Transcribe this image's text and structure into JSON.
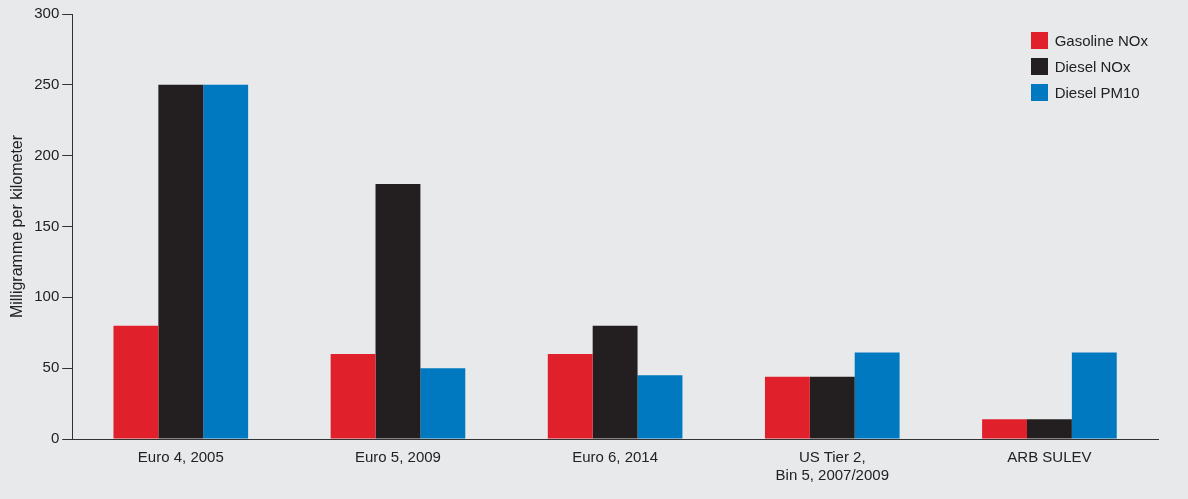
{
  "chart_data": {
    "type": "bar",
    "ylabel": "Milligramme per kilometer",
    "categories": [
      "Euro 4, 2005",
      "Euro 5, 2009",
      "Euro 6, 2014",
      "US Tier 2,\nBin 5, 2007/2009",
      "ARB SULEV"
    ],
    "series": [
      {
        "name": "Gasoline NOx",
        "color": "#e0202a",
        "values": [
          80,
          60,
          60,
          44,
          14
        ]
      },
      {
        "name": "Diesel NOx",
        "color": "#231f20",
        "values": [
          250,
          180,
          80,
          44,
          14
        ]
      },
      {
        "name": "Diesel PM10",
        "color": "#0079c1",
        "values": [
          250,
          50,
          45,
          61,
          61
        ]
      }
    ],
    "ylim": [
      0,
      300
    ],
    "yticks": [
      0,
      50,
      100,
      150,
      200,
      250,
      300
    ],
    "grid": false,
    "legend": "top right"
  }
}
